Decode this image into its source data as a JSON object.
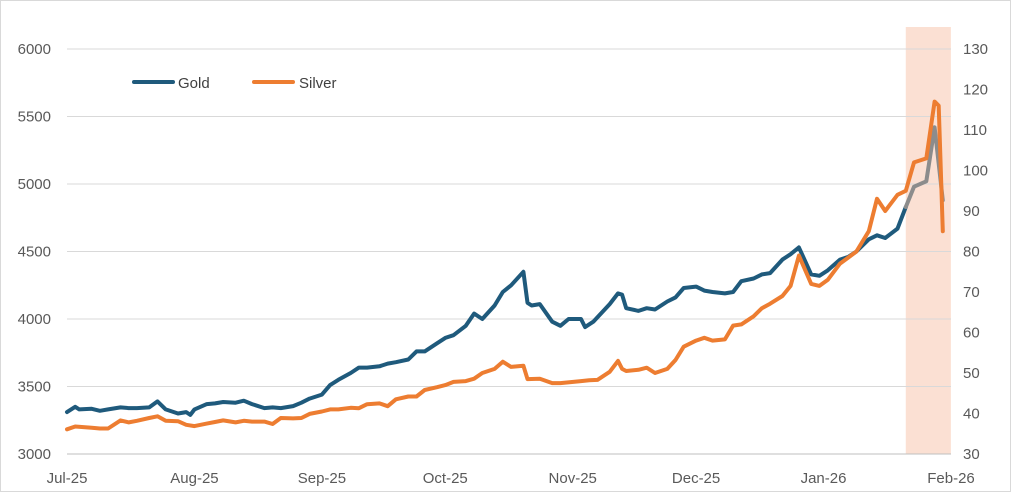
{
  "chart_data": {
    "type": "line",
    "title": "",
    "legend": {
      "placement": "top-left",
      "entries": [
        "Gold",
        "Silver"
      ]
    },
    "grid": true,
    "x_axis": {
      "type": "date",
      "range": [
        "2025-07-01",
        "2026-02-01"
      ],
      "tick_labels": [
        "Jul-25",
        "Aug-25",
        "Sep-25",
        "Oct-25",
        "Nov-25",
        "Dec-25",
        "Jan-26",
        "Feb-26"
      ],
      "tick_dates": [
        "2025-07-01",
        "2025-08-01",
        "2025-09-01",
        "2025-10-01",
        "2025-11-01",
        "2025-12-01",
        "2026-01-01",
        "2026-02-01"
      ]
    },
    "y_axis_left": {
      "ylim": [
        3000,
        6000
      ],
      "ticks": [
        "3000",
        "3500",
        "4000",
        "4500",
        "5000",
        "5500",
        "6000"
      ]
    },
    "y_axis_right": {
      "ylim": [
        30,
        130
      ],
      "ticks": [
        "30",
        "40",
        "50",
        "60",
        "70",
        "80",
        "90",
        "100",
        "110",
        "120",
        "130"
      ]
    },
    "highlight": {
      "from": "2026-01-21",
      "to": "2026-01-31",
      "color": "#fbe0d3"
    },
    "series": [
      {
        "name": "Gold",
        "axis": "left",
        "color": "#1f5a7c",
        "highlight_color": "#8c8c8c",
        "points": [
          [
            "2025-07-01",
            3310
          ],
          [
            "2025-07-03",
            3350
          ],
          [
            "2025-07-04",
            3330
          ],
          [
            "2025-07-07",
            3335
          ],
          [
            "2025-07-09",
            3320
          ],
          [
            "2025-07-11",
            3330
          ],
          [
            "2025-07-14",
            3345
          ],
          [
            "2025-07-16",
            3340
          ],
          [
            "2025-07-18",
            3340
          ],
          [
            "2025-07-21",
            3345
          ],
          [
            "2025-07-23",
            3390
          ],
          [
            "2025-07-25",
            3330
          ],
          [
            "2025-07-28",
            3300
          ],
          [
            "2025-07-30",
            3310
          ],
          [
            "2025-07-31",
            3290
          ],
          [
            "2025-08-01",
            3330
          ],
          [
            "2025-08-04",
            3370
          ],
          [
            "2025-08-06",
            3375
          ],
          [
            "2025-08-08",
            3385
          ],
          [
            "2025-08-11",
            3380
          ],
          [
            "2025-08-13",
            3395
          ],
          [
            "2025-08-15",
            3370
          ],
          [
            "2025-08-18",
            3340
          ],
          [
            "2025-08-20",
            3345
          ],
          [
            "2025-08-22",
            3340
          ],
          [
            "2025-08-25",
            3355
          ],
          [
            "2025-08-27",
            3380
          ],
          [
            "2025-08-29",
            3410
          ],
          [
            "2025-09-01",
            3440
          ],
          [
            "2025-09-03",
            3510
          ],
          [
            "2025-09-05",
            3550
          ],
          [
            "2025-09-08",
            3600
          ],
          [
            "2025-09-10",
            3640
          ],
          [
            "2025-09-12",
            3640
          ],
          [
            "2025-09-15",
            3650
          ],
          [
            "2025-09-17",
            3670
          ],
          [
            "2025-09-19",
            3680
          ],
          [
            "2025-09-22",
            3700
          ],
          [
            "2025-09-24",
            3760
          ],
          [
            "2025-09-26",
            3760
          ],
          [
            "2025-09-29",
            3820
          ],
          [
            "2025-10-01",
            3860
          ],
          [
            "2025-10-03",
            3880
          ],
          [
            "2025-10-06",
            3950
          ],
          [
            "2025-10-08",
            4040
          ],
          [
            "2025-10-10",
            4000
          ],
          [
            "2025-10-13",
            4100
          ],
          [
            "2025-10-15",
            4200
          ],
          [
            "2025-10-17",
            4250
          ],
          [
            "2025-10-20",
            4350
          ],
          [
            "2025-10-21",
            4120
          ],
          [
            "2025-10-22",
            4100
          ],
          [
            "2025-10-24",
            4110
          ],
          [
            "2025-10-27",
            3980
          ],
          [
            "2025-10-29",
            3950
          ],
          [
            "2025-10-31",
            4000
          ],
          [
            "2025-11-03",
            4000
          ],
          [
            "2025-11-04",
            3940
          ],
          [
            "2025-11-06",
            3980
          ],
          [
            "2025-11-10",
            4110
          ],
          [
            "2025-11-12",
            4190
          ],
          [
            "2025-11-13",
            4180
          ],
          [
            "2025-11-14",
            4080
          ],
          [
            "2025-11-17",
            4060
          ],
          [
            "2025-11-19",
            4080
          ],
          [
            "2025-11-21",
            4070
          ],
          [
            "2025-11-24",
            4130
          ],
          [
            "2025-11-26",
            4160
          ],
          [
            "2025-11-28",
            4230
          ],
          [
            "2025-12-01",
            4240
          ],
          [
            "2025-12-03",
            4210
          ],
          [
            "2025-12-05",
            4200
          ],
          [
            "2025-12-08",
            4190
          ],
          [
            "2025-12-10",
            4200
          ],
          [
            "2025-12-12",
            4280
          ],
          [
            "2025-12-15",
            4300
          ],
          [
            "2025-12-17",
            4330
          ],
          [
            "2025-12-19",
            4340
          ],
          [
            "2025-12-22",
            4440
          ],
          [
            "2025-12-24",
            4480
          ],
          [
            "2025-12-26",
            4530
          ],
          [
            "2025-12-29",
            4330
          ],
          [
            "2025-12-31",
            4320
          ],
          [
            "2026-01-02",
            4360
          ],
          [
            "2026-01-05",
            4440
          ],
          [
            "2026-01-07",
            4460
          ],
          [
            "2026-01-09",
            4500
          ],
          [
            "2026-01-12",
            4590
          ],
          [
            "2026-01-14",
            4620
          ],
          [
            "2026-01-16",
            4600
          ],
          [
            "2026-01-19",
            4670
          ],
          [
            "2026-01-21",
            4830
          ],
          [
            "2026-01-23",
            4980
          ],
          [
            "2026-01-26",
            5020
          ],
          [
            "2026-01-28",
            5420
          ],
          [
            "2026-01-30",
            4880
          ]
        ]
      },
      {
        "name": "Silver",
        "axis": "right",
        "color": "#ed7d31",
        "points": [
          [
            "2025-07-01",
            36.1
          ],
          [
            "2025-07-03",
            36.8
          ],
          [
            "2025-07-07",
            36.5
          ],
          [
            "2025-07-09",
            36.3
          ],
          [
            "2025-07-11",
            36.3
          ],
          [
            "2025-07-14",
            38.3
          ],
          [
            "2025-07-16",
            37.8
          ],
          [
            "2025-07-18",
            38.2
          ],
          [
            "2025-07-21",
            38.9
          ],
          [
            "2025-07-23",
            39.3
          ],
          [
            "2025-07-25",
            38.2
          ],
          [
            "2025-07-28",
            38.1
          ],
          [
            "2025-07-30",
            37.2
          ],
          [
            "2025-08-01",
            36.9
          ],
          [
            "2025-08-04",
            37.5
          ],
          [
            "2025-08-06",
            37.9
          ],
          [
            "2025-08-08",
            38.3
          ],
          [
            "2025-08-11",
            37.8
          ],
          [
            "2025-08-13",
            38.2
          ],
          [
            "2025-08-15",
            38.0
          ],
          [
            "2025-08-18",
            38.0
          ],
          [
            "2025-08-20",
            37.4
          ],
          [
            "2025-08-22",
            38.9
          ],
          [
            "2025-08-25",
            38.8
          ],
          [
            "2025-08-27",
            38.9
          ],
          [
            "2025-08-29",
            39.9
          ],
          [
            "2025-09-01",
            40.5
          ],
          [
            "2025-09-03",
            41.0
          ],
          [
            "2025-09-05",
            41.0
          ],
          [
            "2025-09-08",
            41.4
          ],
          [
            "2025-09-10",
            41.3
          ],
          [
            "2025-09-12",
            42.3
          ],
          [
            "2025-09-15",
            42.5
          ],
          [
            "2025-09-17",
            41.8
          ],
          [
            "2025-09-19",
            43.5
          ],
          [
            "2025-09-22",
            44.2
          ],
          [
            "2025-09-24",
            44.2
          ],
          [
            "2025-09-26",
            45.8
          ],
          [
            "2025-09-29",
            46.5
          ],
          [
            "2025-10-01",
            47.0
          ],
          [
            "2025-10-03",
            47.8
          ],
          [
            "2025-10-06",
            48.0
          ],
          [
            "2025-10-08",
            48.6
          ],
          [
            "2025-10-10",
            50.0
          ],
          [
            "2025-10-13",
            51.0
          ],
          [
            "2025-10-15",
            52.8
          ],
          [
            "2025-10-17",
            51.5
          ],
          [
            "2025-10-20",
            51.8
          ],
          [
            "2025-10-21",
            48.5
          ],
          [
            "2025-10-24",
            48.6
          ],
          [
            "2025-10-27",
            47.5
          ],
          [
            "2025-10-29",
            47.5
          ],
          [
            "2025-11-03",
            48.0
          ],
          [
            "2025-11-05",
            48.2
          ],
          [
            "2025-11-07",
            48.3
          ],
          [
            "2025-11-10",
            50.3
          ],
          [
            "2025-11-12",
            53.0
          ],
          [
            "2025-11-13",
            51.0
          ],
          [
            "2025-11-14",
            50.5
          ],
          [
            "2025-11-17",
            50.8
          ],
          [
            "2025-11-19",
            51.3
          ],
          [
            "2025-11-21",
            50.0
          ],
          [
            "2025-11-24",
            51.0
          ],
          [
            "2025-11-26",
            53.2
          ],
          [
            "2025-11-28",
            56.5
          ],
          [
            "2025-12-01",
            58.0
          ],
          [
            "2025-12-03",
            58.7
          ],
          [
            "2025-12-05",
            58.0
          ],
          [
            "2025-12-08",
            58.3
          ],
          [
            "2025-12-10",
            61.7
          ],
          [
            "2025-12-12",
            62.0
          ],
          [
            "2025-12-15",
            64.0
          ],
          [
            "2025-12-17",
            66.0
          ],
          [
            "2025-12-19",
            67.1
          ],
          [
            "2025-12-22",
            69.0
          ],
          [
            "2025-12-24",
            71.5
          ],
          [
            "2025-12-26",
            79.0
          ],
          [
            "2025-12-29",
            72.0
          ],
          [
            "2025-12-31",
            71.5
          ],
          [
            "2026-01-02",
            73.0
          ],
          [
            "2026-01-05",
            77.0
          ],
          [
            "2026-01-07",
            78.5
          ],
          [
            "2026-01-09",
            80.0
          ],
          [
            "2026-01-12",
            85.0
          ],
          [
            "2026-01-14",
            93.0
          ],
          [
            "2026-01-16",
            90.0
          ],
          [
            "2026-01-19",
            94.0
          ],
          [
            "2026-01-21",
            95.0
          ],
          [
            "2026-01-23",
            102.0
          ],
          [
            "2026-01-26",
            103.0
          ],
          [
            "2026-01-28",
            117.0
          ],
          [
            "2026-01-29",
            116.0
          ],
          [
            "2026-01-30",
            85.0
          ]
        ]
      }
    ]
  }
}
